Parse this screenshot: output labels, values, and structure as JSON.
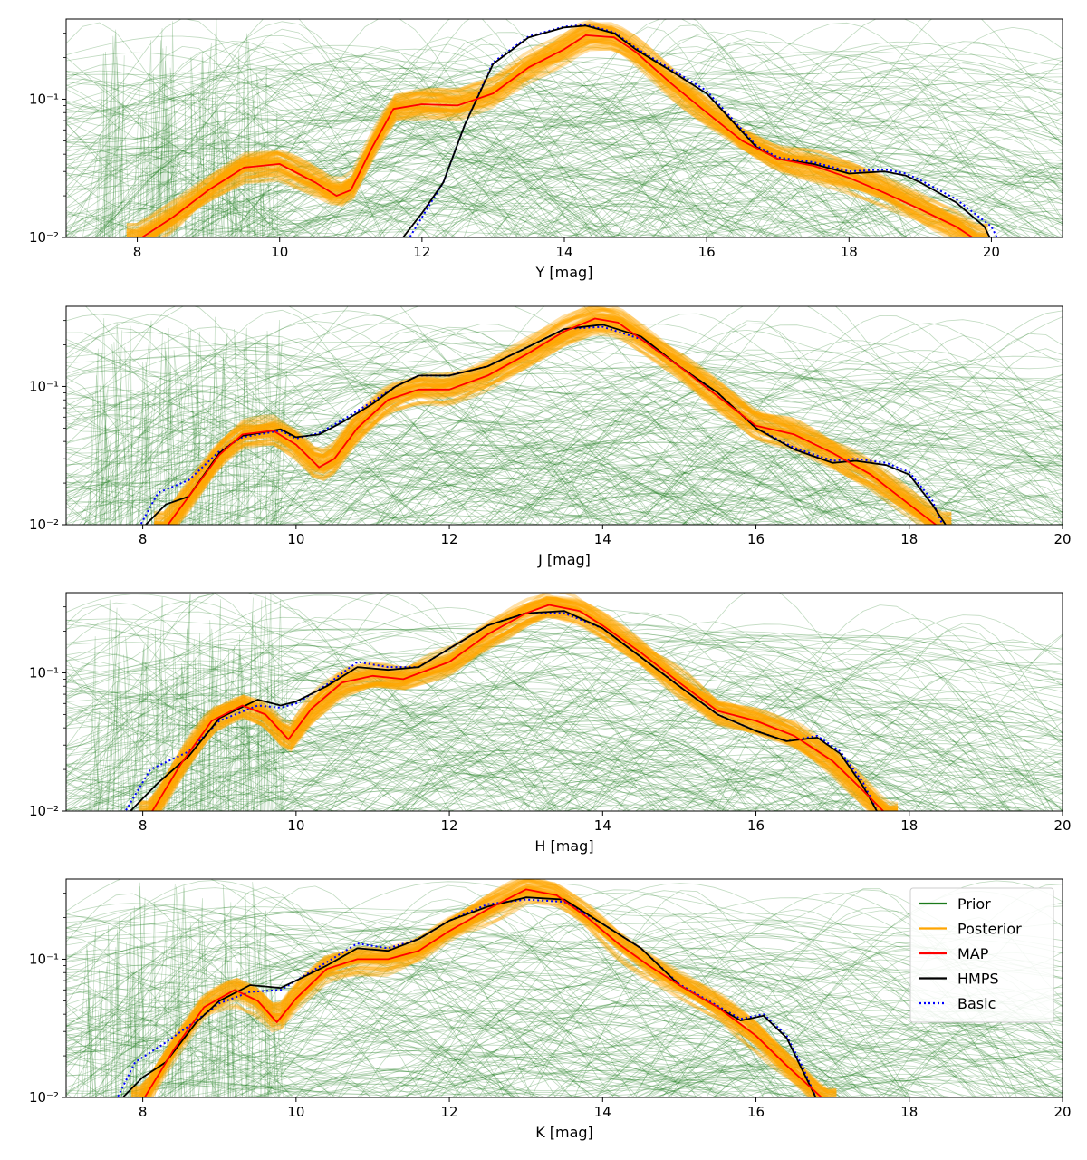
{
  "chart_data": [
    {
      "type": "line",
      "xlabel": "Y [mag]",
      "xlim": [
        7,
        21
      ],
      "yscale": "log",
      "ylim": [
        0.01,
        0.38
      ],
      "xticks": [
        8,
        10,
        12,
        14,
        16,
        18,
        20
      ],
      "yticks": [
        {
          "value": 0.01,
          "label": "10⁻²"
        },
        {
          "value": 0.1,
          "label": "10⁻¹"
        }
      ],
      "series": [
        {
          "name": "MAP",
          "x": [
            8.0,
            8.5,
            9.0,
            9.5,
            10.0,
            10.5,
            10.8,
            11.0,
            11.3,
            11.6,
            12.0,
            12.5,
            13.0,
            13.5,
            14.0,
            14.3,
            14.7,
            15.0,
            15.5,
            16.0,
            16.5,
            17.0,
            17.5,
            18.0,
            18.5,
            19.0,
            19.5,
            19.8
          ],
          "y": [
            0.0095,
            0.014,
            0.022,
            0.032,
            0.034,
            0.025,
            0.02,
            0.022,
            0.045,
            0.085,
            0.092,
            0.09,
            0.11,
            0.17,
            0.23,
            0.29,
            0.28,
            0.22,
            0.13,
            0.08,
            0.05,
            0.037,
            0.033,
            0.027,
            0.021,
            0.016,
            0.012,
            0.0095
          ]
        },
        {
          "name": "HMPS",
          "x": [
            11.7,
            12.0,
            12.3,
            12.6,
            13.0,
            13.5,
            14.0,
            14.3,
            14.7,
            15.0,
            15.5,
            16.0,
            16.3,
            16.7,
            17.0,
            17.5,
            18.0,
            18.5,
            18.8,
            19.0,
            19.5,
            19.9,
            20.0
          ],
          "y": [
            0.0095,
            0.015,
            0.025,
            0.065,
            0.18,
            0.28,
            0.33,
            0.34,
            0.3,
            0.23,
            0.16,
            0.11,
            0.075,
            0.045,
            0.037,
            0.034,
            0.029,
            0.03,
            0.028,
            0.025,
            0.018,
            0.012,
            0.0095
          ]
        },
        {
          "name": "Basic",
          "x": [
            11.8,
            12.0,
            12.3,
            12.6,
            13.0,
            13.5,
            14.0,
            14.3,
            14.7,
            15.0,
            15.5,
            16.0,
            16.3,
            16.7,
            17.0,
            17.5,
            18.0,
            18.5,
            18.8,
            19.0,
            19.5,
            20.0,
            20.1
          ],
          "y": [
            0.0095,
            0.014,
            0.025,
            0.065,
            0.185,
            0.285,
            0.335,
            0.345,
            0.305,
            0.235,
            0.165,
            0.115,
            0.078,
            0.046,
            0.038,
            0.035,
            0.03,
            0.031,
            0.029,
            0.026,
            0.019,
            0.012,
            0.0095
          ]
        }
      ]
    },
    {
      "type": "line",
      "xlabel": "J [mag]",
      "xlim": [
        7,
        20
      ],
      "yscale": "log",
      "ylim": [
        0.01,
        0.38
      ],
      "xticks": [
        8,
        10,
        12,
        14,
        16,
        18,
        20
      ],
      "yticks": [
        {
          "value": 0.01,
          "label": "10⁻²"
        },
        {
          "value": 0.1,
          "label": "10⁻¹"
        }
      ],
      "series": [
        {
          "name": "MAP",
          "x": [
            8.3,
            8.6,
            9.0,
            9.3,
            9.7,
            10.0,
            10.3,
            10.5,
            10.8,
            11.2,
            11.6,
            12.0,
            12.5,
            13.0,
            13.5,
            13.9,
            14.2,
            14.5,
            15.0,
            15.5,
            16.0,
            16.5,
            17.0,
            17.5,
            18.0,
            18.4
          ],
          "y": [
            0.0095,
            0.016,
            0.032,
            0.045,
            0.048,
            0.038,
            0.026,
            0.03,
            0.05,
            0.08,
            0.095,
            0.095,
            0.12,
            0.17,
            0.25,
            0.31,
            0.29,
            0.22,
            0.14,
            0.085,
            0.052,
            0.045,
            0.033,
            0.023,
            0.014,
            0.0095
          ]
        },
        {
          "name": "HMPS",
          "x": [
            8.0,
            8.3,
            8.6,
            9.0,
            9.3,
            9.8,
            10.0,
            10.3,
            10.6,
            11.0,
            11.3,
            11.6,
            12.0,
            12.5,
            13.0,
            13.5,
            14.0,
            14.5,
            15.0,
            15.5,
            16.0,
            16.5,
            17.0,
            17.3,
            17.7,
            18.0,
            18.3,
            18.5
          ],
          "y": [
            0.0095,
            0.014,
            0.016,
            0.033,
            0.044,
            0.049,
            0.043,
            0.045,
            0.055,
            0.075,
            0.1,
            0.12,
            0.12,
            0.14,
            0.19,
            0.26,
            0.28,
            0.23,
            0.14,
            0.09,
            0.05,
            0.035,
            0.028,
            0.029,
            0.027,
            0.023,
            0.014,
            0.0095
          ]
        },
        {
          "name": "Basic",
          "x": [
            7.95,
            8.2,
            8.6,
            9.0,
            9.3,
            9.8,
            10.0,
            10.3,
            10.6,
            11.0,
            11.3,
            11.6,
            12.0,
            12.5,
            13.0,
            13.5,
            14.0,
            14.5,
            15.0,
            15.5,
            16.0,
            16.5,
            17.0,
            17.3,
            17.7,
            18.0,
            18.3,
            18.45
          ],
          "y": [
            0.0095,
            0.017,
            0.021,
            0.034,
            0.043,
            0.048,
            0.042,
            0.046,
            0.057,
            0.078,
            0.1,
            0.12,
            0.12,
            0.14,
            0.19,
            0.26,
            0.27,
            0.22,
            0.14,
            0.09,
            0.05,
            0.036,
            0.029,
            0.03,
            0.028,
            0.024,
            0.015,
            0.0095
          ]
        }
      ]
    },
    {
      "type": "line",
      "xlabel": "H [mag]",
      "xlim": [
        7,
        20
      ],
      "yscale": "log",
      "ylim": [
        0.01,
        0.38
      ],
      "xticks": [
        8,
        10,
        12,
        14,
        16,
        18,
        20
      ],
      "yticks": [
        {
          "value": 0.01,
          "label": "10⁻²"
        },
        {
          "value": 0.1,
          "label": "10⁻¹"
        }
      ],
      "series": [
        {
          "name": "MAP",
          "x": [
            8.1,
            8.5,
            8.9,
            9.3,
            9.6,
            9.9,
            10.2,
            10.6,
            11.0,
            11.4,
            12.0,
            12.5,
            13.0,
            13.3,
            13.7,
            14.0,
            14.5,
            15.0,
            15.5,
            16.0,
            16.5,
            17.0,
            17.4,
            17.7
          ],
          "y": [
            0.0095,
            0.022,
            0.045,
            0.058,
            0.05,
            0.033,
            0.055,
            0.085,
            0.095,
            0.09,
            0.12,
            0.19,
            0.27,
            0.31,
            0.28,
            0.22,
            0.14,
            0.085,
            0.053,
            0.045,
            0.035,
            0.023,
            0.014,
            0.0095
          ]
        },
        {
          "name": "HMPS",
          "x": [
            7.8,
            8.2,
            8.6,
            9.0,
            9.5,
            9.8,
            10.0,
            10.4,
            10.8,
            11.2,
            11.6,
            12.0,
            12.5,
            13.0,
            13.5,
            14.0,
            14.5,
            15.0,
            15.5,
            16.0,
            16.4,
            16.8,
            17.1,
            17.4,
            17.6
          ],
          "y": [
            0.0095,
            0.016,
            0.025,
            0.047,
            0.064,
            0.058,
            0.062,
            0.08,
            0.11,
            0.105,
            0.11,
            0.15,
            0.22,
            0.27,
            0.28,
            0.21,
            0.13,
            0.08,
            0.05,
            0.038,
            0.032,
            0.034,
            0.026,
            0.015,
            0.0095
          ]
        },
        {
          "name": "Basic",
          "x": [
            7.75,
            8.1,
            8.6,
            9.0,
            9.5,
            9.8,
            10.0,
            10.4,
            10.8,
            11.2,
            11.6,
            12.0,
            12.5,
            13.0,
            13.5,
            14.0,
            14.5,
            15.0,
            15.5,
            16.0,
            16.4,
            16.8,
            17.1,
            17.4,
            17.6
          ],
          "y": [
            0.0095,
            0.02,
            0.027,
            0.045,
            0.058,
            0.056,
            0.06,
            0.082,
            0.12,
            0.11,
            0.11,
            0.15,
            0.22,
            0.27,
            0.27,
            0.21,
            0.13,
            0.08,
            0.05,
            0.038,
            0.032,
            0.035,
            0.027,
            0.016,
            0.0095
          ]
        }
      ]
    },
    {
      "type": "line",
      "xlabel": "K [mag]",
      "xlim": [
        7,
        20
      ],
      "yscale": "log",
      "ylim": [
        0.01,
        0.38
      ],
      "xticks": [
        8,
        10,
        12,
        14,
        16,
        18,
        20
      ],
      "yticks": [
        {
          "value": 0.01,
          "label": "10⁻²"
        },
        {
          "value": 0.1,
          "label": "10⁻¹"
        }
      ],
      "series": [
        {
          "name": "MAP",
          "x": [
            8.0,
            8.4,
            8.8,
            9.2,
            9.5,
            9.75,
            10.0,
            10.4,
            10.8,
            11.2,
            11.6,
            12.0,
            12.5,
            13.0,
            13.4,
            13.8,
            14.2,
            14.6,
            15.0,
            15.5,
            16.0,
            16.4,
            16.7,
            16.9
          ],
          "y": [
            0.0095,
            0.022,
            0.045,
            0.06,
            0.05,
            0.035,
            0.052,
            0.085,
            0.1,
            0.1,
            0.115,
            0.16,
            0.23,
            0.32,
            0.29,
            0.2,
            0.13,
            0.09,
            0.065,
            0.045,
            0.028,
            0.017,
            0.012,
            0.0095
          ]
        },
        {
          "name": "HMPS",
          "x": [
            7.7,
            8.0,
            8.3,
            8.7,
            9.0,
            9.4,
            9.8,
            10.0,
            10.4,
            10.8,
            11.2,
            11.6,
            12.0,
            12.5,
            13.0,
            13.5,
            14.0,
            14.5,
            15.0,
            15.5,
            15.8,
            16.1,
            16.4,
            16.6,
            16.8
          ],
          "y": [
            0.0095,
            0.014,
            0.018,
            0.035,
            0.05,
            0.065,
            0.062,
            0.07,
            0.09,
            0.12,
            0.115,
            0.14,
            0.19,
            0.24,
            0.28,
            0.27,
            0.18,
            0.12,
            0.065,
            0.045,
            0.036,
            0.039,
            0.027,
            0.016,
            0.0095
          ]
        },
        {
          "name": "Basic",
          "x": [
            7.65,
            7.9,
            8.3,
            8.7,
            9.0,
            9.4,
            9.8,
            10.0,
            10.4,
            10.8,
            11.2,
            11.6,
            12.0,
            12.5,
            13.0,
            13.5,
            14.0,
            14.5,
            15.0,
            15.5,
            15.8,
            16.1,
            16.4,
            16.6,
            16.8
          ],
          "y": [
            0.0095,
            0.018,
            0.025,
            0.036,
            0.048,
            0.058,
            0.06,
            0.07,
            0.095,
            0.13,
            0.12,
            0.14,
            0.19,
            0.25,
            0.27,
            0.26,
            0.18,
            0.12,
            0.066,
            0.046,
            0.037,
            0.04,
            0.028,
            0.017,
            0.0095
          ]
        }
      ]
    }
  ],
  "legend": {
    "placement": "upper right of bottom panel",
    "entries": [
      {
        "label": "Prior",
        "color": "#1a7a1a",
        "style": "solid"
      },
      {
        "label": "Posterior",
        "color": "#ffa500",
        "style": "solid"
      },
      {
        "label": "MAP",
        "color": "#ff0000",
        "style": "solid"
      },
      {
        "label": "HMPS",
        "color": "#000000",
        "style": "solid"
      },
      {
        "label": "Basic",
        "color": "#0000ff",
        "style": "dotted"
      }
    ]
  },
  "colors": {
    "prior": "#1a7a1a",
    "posterior": "#ffa500",
    "map": "#ff0000",
    "hmps": "#000000",
    "basic": "#0000ff"
  }
}
